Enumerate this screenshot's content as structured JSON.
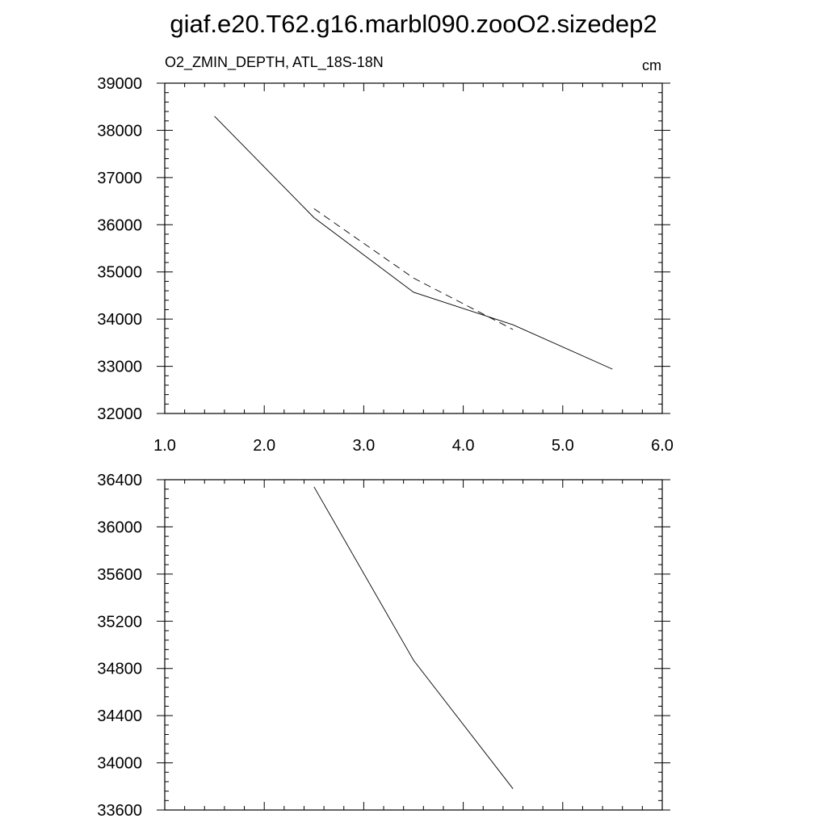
{
  "title": "giaf.e20.T62.g16.marbl090.zooO2.sizedep2",
  "chart_data": [
    {
      "type": "line",
      "left_label": "O2_ZMIN_DEPTH, ATL_18S-18N",
      "right_label": "cm",
      "xlim": [
        1.0,
        6.0
      ],
      "ylim": [
        32000,
        39000
      ],
      "x_ticks": [
        "1.0",
        "2.0",
        "3.0",
        "4.0",
        "5.0",
        "6.0"
      ],
      "x_tick_values": [
        1,
        2,
        3,
        4,
        5,
        6
      ],
      "y_ticks": [
        "32000",
        "33000",
        "34000",
        "35000",
        "36000",
        "37000",
        "38000",
        "39000"
      ],
      "y_tick_values": [
        32000,
        33000,
        34000,
        35000,
        36000,
        37000,
        38000,
        39000
      ],
      "grid": false,
      "series": [
        {
          "style": "solid",
          "x": [
            1.5,
            2.5,
            3.5,
            4.5,
            5.5
          ],
          "y": [
            38300,
            36150,
            34570,
            33880,
            32940
          ]
        },
        {
          "style": "dashed",
          "x": [
            2.5,
            3.5,
            4.5
          ],
          "y": [
            36340,
            34870,
            33780
          ]
        }
      ]
    },
    {
      "type": "line",
      "xlim": [
        1.0,
        6.0
      ],
      "ylim": [
        33600,
        36400
      ],
      "y_ticks": [
        "33600",
        "34000",
        "34400",
        "34800",
        "35200",
        "35600",
        "36000",
        "36400"
      ],
      "y_tick_values": [
        33600,
        34000,
        34400,
        34800,
        35200,
        35600,
        36000,
        36400
      ],
      "grid": false,
      "series": [
        {
          "style": "solid",
          "x": [
            2.5,
            3.5,
            4.5
          ],
          "y": [
            36340,
            34870,
            33780
          ]
        }
      ]
    }
  ]
}
